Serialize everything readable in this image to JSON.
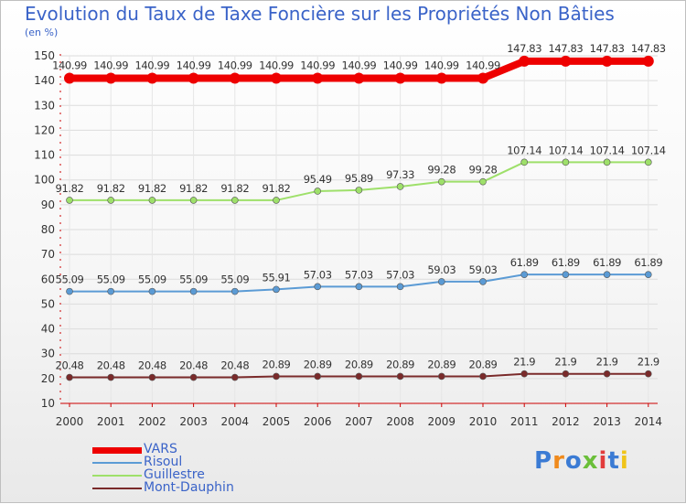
{
  "header": {
    "title": "Evolution du Taux de Taxe Foncière sur les Propriétés Non Bâties",
    "unit": "(en %)"
  },
  "chart_data": {
    "type": "line",
    "title": "Evolution du Taux de Taxe Foncière sur les Propriétés Non Bâties",
    "ylabel": "(en %)",
    "xlabel": "",
    "ylim": [
      10,
      150
    ],
    "yticks": [
      10,
      20,
      30,
      40,
      50,
      60,
      70,
      80,
      90,
      100,
      110,
      120,
      130,
      140,
      150
    ],
    "x": [
      "2000",
      "2001",
      "2002",
      "2003",
      "2004",
      "2005",
      "2006",
      "2007",
      "2008",
      "2009",
      "2010",
      "2011",
      "2012",
      "2013",
      "2014"
    ],
    "grid": true,
    "series": [
      {
        "name": "VARS",
        "color": "#ee0000",
        "values": [
          140.99,
          140.99,
          140.99,
          140.99,
          140.99,
          140.99,
          140.99,
          140.99,
          140.99,
          140.99,
          140.99,
          147.83,
          147.83,
          147.83,
          147.83
        ],
        "labels": [
          "140.99",
          "140.99",
          "140.99",
          "140.99",
          "140.99",
          "140.99",
          "140.99",
          "140.99",
          "140.99",
          "140.99",
          "140.99",
          "147.83",
          "147.83",
          "147.83",
          "147.83"
        ]
      },
      {
        "name": "Risoul",
        "color": "#5b9bd5",
        "values": [
          55.09,
          55.09,
          55.09,
          55.09,
          55.09,
          55.91,
          57.03,
          57.03,
          57.03,
          59.03,
          59.03,
          61.89,
          61.89,
          61.89,
          61.89
        ],
        "labels": [
          "55.09",
          "55.09",
          "55.09",
          "55.09",
          "55.09",
          "55.91",
          "57.03",
          "57.03",
          "57.03",
          "59.03",
          "59.03",
          "61.89",
          "61.89",
          "61.89",
          "61.89"
        ]
      },
      {
        "name": "Guillestre",
        "color": "#9ee06a",
        "values": [
          91.82,
          91.82,
          91.82,
          91.82,
          91.82,
          91.82,
          95.49,
          95.89,
          97.33,
          99.28,
          99.28,
          107.14,
          107.14,
          107.14,
          107.14
        ],
        "labels": [
          "91.82",
          "91.82",
          "91.82",
          "91.82",
          "91.82",
          "91.82",
          "95.49",
          "95.89",
          "97.33",
          "99.28",
          "99.28",
          "107.14",
          "107.14",
          "107.14",
          "107.14"
        ]
      },
      {
        "name": "Mont-Dauphin",
        "color": "#7a2a2a",
        "values": [
          20.48,
          20.48,
          20.48,
          20.48,
          20.48,
          20.89,
          20.89,
          20.89,
          20.89,
          20.89,
          20.89,
          21.9,
          21.9,
          21.9,
          21.9
        ],
        "labels": [
          "20.48",
          "20.48",
          "20.48",
          "20.48",
          "20.48",
          "20.89",
          "20.89",
          "20.89",
          "20.89",
          "20.89",
          "20.89",
          "21.9",
          "21.9",
          "21.9",
          "21.9"
        ]
      }
    ]
  },
  "logo": {
    "letters": [
      "P",
      "r",
      "o",
      "x",
      "i",
      "t",
      "i"
    ],
    "colors": [
      "#3b7bd4",
      "#f08a1c",
      "#3b7bd4",
      "#6bbf3a",
      "#e23c3c",
      "#3b7bd4",
      "#f0c419"
    ]
  }
}
